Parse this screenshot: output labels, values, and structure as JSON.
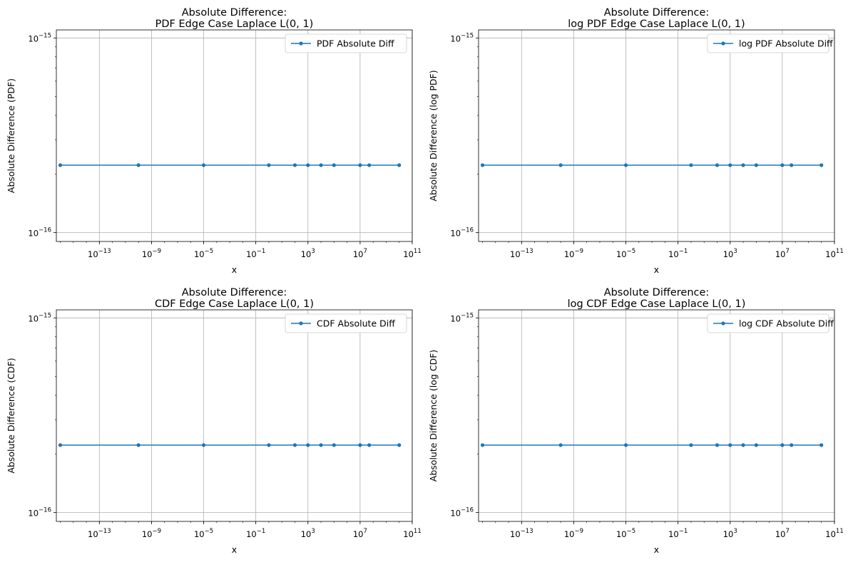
{
  "chart_data": [
    {
      "type": "line",
      "title_line1": "Absolute Difference:",
      "title_line2": "PDF Edge Case Laplace L(0, 1)",
      "xlabel": "x",
      "ylabel": "Absolute Difference (PDF)",
      "xscale": "log",
      "yscale": "log",
      "grid": true,
      "legend_position": "top-right",
      "x_ticks": [
        "10^-13",
        "10^-9",
        "10^-5",
        "10^-1",
        "10^3",
        "10^7",
        "10^11"
      ],
      "y_ticks": [
        "10^-16",
        "10^-15"
      ],
      "xlim": [
        5e-17,
        100000000000.0
      ],
      "ylim": [
        9e-17,
        1.1e-15
      ],
      "series": [
        {
          "name": "PDF Absolute Diff",
          "color": "#1f77b4",
          "marker": "circle",
          "x": [
            1e-16,
            1e-10,
            1e-05,
            1,
            100,
            1000,
            10000,
            100000,
            10000000,
            50000000,
            10000000000
          ],
          "y": [
            2.22e-16,
            2.22e-16,
            2.22e-16,
            2.22e-16,
            2.22e-16,
            2.22e-16,
            2.22e-16,
            2.22e-16,
            2.22e-16,
            2.22e-16,
            2.22e-16
          ]
        }
      ]
    },
    {
      "type": "line",
      "title_line1": "Absolute Difference:",
      "title_line2": "log PDF Edge Case Laplace L(0, 1)",
      "xlabel": "x",
      "ylabel": "Absolute Difference (log PDF)",
      "xscale": "log",
      "yscale": "log",
      "grid": true,
      "legend_position": "top-right",
      "x_ticks": [
        "10^-13",
        "10^-9",
        "10^-5",
        "10^-1",
        "10^3",
        "10^7",
        "10^11"
      ],
      "y_ticks": [
        "10^-16",
        "10^-15"
      ],
      "xlim": [
        5e-17,
        100000000000.0
      ],
      "ylim": [
        9e-17,
        1.1e-15
      ],
      "series": [
        {
          "name": "log PDF Absolute Diff",
          "color": "#1f77b4",
          "marker": "circle",
          "x": [
            1e-16,
            1e-10,
            1e-05,
            1,
            100,
            1000,
            10000,
            100000,
            10000000,
            50000000,
            10000000000
          ],
          "y": [
            2.22e-16,
            2.22e-16,
            2.22e-16,
            2.22e-16,
            2.22e-16,
            2.22e-16,
            2.22e-16,
            2.22e-16,
            2.22e-16,
            2.22e-16,
            2.22e-16
          ]
        }
      ]
    },
    {
      "type": "line",
      "title_line1": "Absolute Difference:",
      "title_line2": "CDF Edge Case Laplace L(0, 1)",
      "xlabel": "x",
      "ylabel": "Absolute Difference (CDF)",
      "xscale": "log",
      "yscale": "log",
      "grid": true,
      "legend_position": "top-right",
      "x_ticks": [
        "10^-13",
        "10^-9",
        "10^-5",
        "10^-1",
        "10^3",
        "10^7",
        "10^11"
      ],
      "y_ticks": [
        "10^-16",
        "10^-15"
      ],
      "xlim": [
        5e-17,
        100000000000.0
      ],
      "ylim": [
        9e-17,
        1.1e-15
      ],
      "series": [
        {
          "name": "CDF Absolute Diff",
          "color": "#1f77b4",
          "marker": "circle",
          "x": [
            1e-16,
            1e-10,
            1e-05,
            1,
            100,
            1000,
            10000,
            100000,
            10000000,
            50000000,
            10000000000
          ],
          "y": [
            2.22e-16,
            2.22e-16,
            2.22e-16,
            2.22e-16,
            2.22e-16,
            2.22e-16,
            2.22e-16,
            2.22e-16,
            2.22e-16,
            2.22e-16,
            2.22e-16
          ]
        }
      ]
    },
    {
      "type": "line",
      "title_line1": "Absolute Difference:",
      "title_line2": "log CDF Edge Case Laplace L(0, 1)",
      "xlabel": "x",
      "ylabel": "Absolute Difference (log CDF)",
      "xscale": "log",
      "yscale": "log",
      "grid": true,
      "legend_position": "top-right",
      "x_ticks": [
        "10^-13",
        "10^-9",
        "10^-5",
        "10^-1",
        "10^3",
        "10^7",
        "10^11"
      ],
      "y_ticks": [
        "10^-16",
        "10^-15"
      ],
      "xlim": [
        5e-17,
        100000000000.0
      ],
      "ylim": [
        9e-17,
        1.1e-15
      ],
      "series": [
        {
          "name": "log CDF Absolute Diff",
          "color": "#1f77b4",
          "marker": "circle",
          "x": [
            1e-16,
            1e-10,
            1e-05,
            1,
            100,
            1000,
            10000,
            100000,
            10000000,
            50000000,
            10000000000
          ],
          "y": [
            2.22e-16,
            2.22e-16,
            2.22e-16,
            2.22e-16,
            2.22e-16,
            2.22e-16,
            2.22e-16,
            2.22e-16,
            2.22e-16,
            2.22e-16,
            2.22e-16
          ]
        }
      ]
    }
  ]
}
